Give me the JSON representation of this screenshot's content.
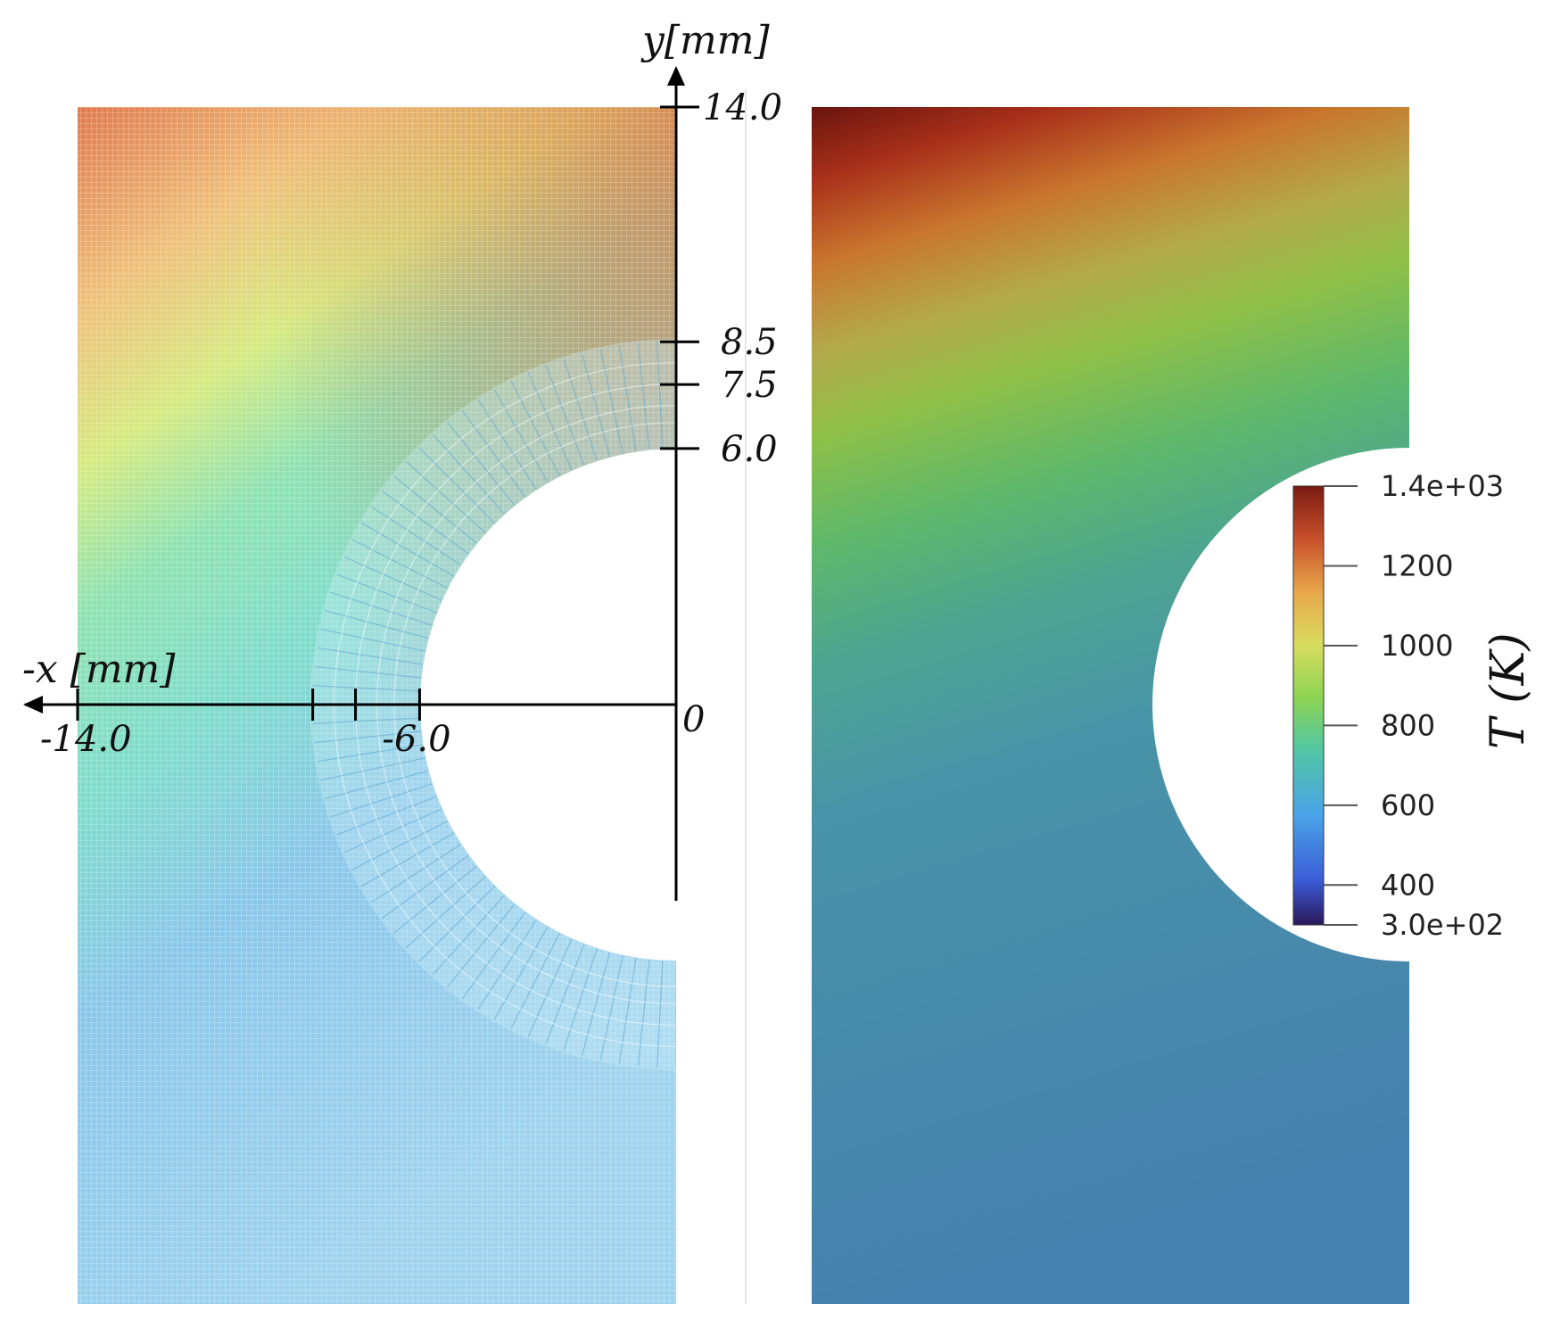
{
  "left_panel": {
    "x_axis_label": "-x [mm]",
    "y_axis_label": "y[mm]",
    "origin_label": "0",
    "x_ticks": [
      {
        "value": -14.0,
        "label": "-14.0"
      },
      {
        "value": -8.5,
        "label": ""
      },
      {
        "value": -7.5,
        "label": ""
      },
      {
        "value": -6.0,
        "label": "-6.0"
      }
    ],
    "y_ticks": [
      {
        "value": 14.0,
        "label": "14.0"
      },
      {
        "value": 8.5,
        "label": "8.5"
      },
      {
        "value": 7.5,
        "label": "7.5"
      },
      {
        "value": 6.0,
        "label": "6.0"
      }
    ]
  },
  "colorbar": {
    "title": "T (K)",
    "min": 300,
    "max": 1400,
    "ticks": [
      {
        "value": 1400,
        "label": "1.4e+03"
      },
      {
        "value": 1200,
        "label": "1200"
      },
      {
        "value": 1000,
        "label": "1000"
      },
      {
        "value": 800,
        "label": "800"
      },
      {
        "value": 600,
        "label": "600"
      },
      {
        "value": 400,
        "label": "400"
      },
      {
        "value": 300,
        "label": "3.0e+02"
      }
    ],
    "colors": [
      "#2a1858",
      "#3b5bd6",
      "#4aa3e8",
      "#52c7a4",
      "#8fd452",
      "#d9dc5e",
      "#e8a64a",
      "#c8502c",
      "#7a1a12"
    ]
  }
}
